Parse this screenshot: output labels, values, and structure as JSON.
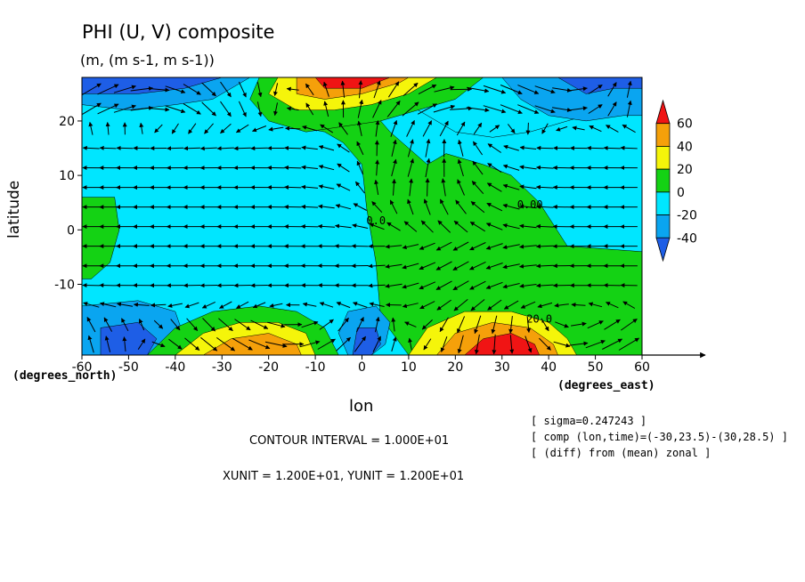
{
  "figure": {
    "title": "PHI (U, V) composite",
    "units_line": "(m, (m s-1, m s-1))",
    "xlabel": "lon",
    "ylabel": "latitude",
    "xaxis_unit_label": "(degrees_east)",
    "yaxis_unit_label": "(degrees_north)",
    "contour_interval_text": "CONTOUR INTERVAL = 1.000E+01",
    "vector_units_text": "XUNIT = 1.200E+01, YUNIT = 1.200E+01",
    "metadata_lines": [
      "[ sigma=0.247243 ]",
      "[ comp (lon,time)=(-30,23.5)-(30,28.5) ]",
      "[ (diff) from (mean) zonal ]"
    ]
  },
  "colors": {
    "level_lt_-40": "#1e5ee6",
    "level_-40_-20": "#0aa5f0",
    "level_-20_0": "#00e6ff",
    "level_0_20": "#14d214",
    "level_20_40": "#f5f50a",
    "level_40_60": "#f5a00a",
    "level_gt_60": "#f01414"
  },
  "chart_data": {
    "type": "heatmap",
    "subtype": "filled contour with overlaid wind vectors",
    "variable": "PHI (geopotential height anomaly) with (U, V) wind vectors",
    "xlim": [
      -60,
      60
    ],
    "ylim": [
      -23,
      28
    ],
    "x_ticks": [
      -60,
      -50,
      -40,
      -30,
      -20,
      -10,
      0,
      10,
      20,
      30,
      40,
      50,
      60
    ],
    "x_tick_labels": [
      "-60",
      "-50",
      "-40",
      "-30",
      "-20",
      "-10",
      "0",
      "10",
      "20",
      "30",
      "40",
      "50",
      "60"
    ],
    "y_ticks": [
      -10,
      0,
      10,
      20
    ],
    "y_tick_labels": [
      "-10",
      "0",
      "10",
      "20"
    ],
    "colorbar": {
      "levels": [
        -40,
        -20,
        0,
        20,
        40,
        60
      ],
      "tick_labels": [
        "60",
        "40",
        "20",
        "0",
        "-20",
        "-40"
      ],
      "colors": [
        "#1e5ee6",
        "#0aa5f0",
        "#00e6ff",
        "#14d214",
        "#f5f50a",
        "#f5a00a",
        "#f01414"
      ]
    },
    "contour_labels": [
      {
        "text": "0.00",
        "lon": 36,
        "lat": 4
      },
      {
        "text": "20.0",
        "lon": 38,
        "lat": -17
      },
      {
        "text": "0.0",
        "lon": 3,
        "lat": 1
      }
    ],
    "regions": [
      {
        "name": "background",
        "level": "-20_0"
      },
      {
        "name": "eastern green zone",
        "level": "0_20",
        "poly": [
          [
            -14,
            28
          ],
          [
            -2,
            28
          ],
          [
            2,
            22
          ],
          [
            6,
            18
          ],
          [
            10,
            15
          ],
          [
            14,
            12
          ],
          [
            18,
            14
          ],
          [
            26,
            12
          ],
          [
            32,
            10
          ],
          [
            38,
            5
          ],
          [
            44,
            -3
          ],
          [
            60,
            -4
          ],
          [
            60,
            -23
          ],
          [
            10,
            -23
          ],
          [
            4,
            -16
          ],
          [
            3,
            -6
          ],
          [
            1,
            4
          ],
          [
            0,
            12
          ],
          [
            -4,
            16
          ],
          [
            -8,
            18
          ],
          [
            -14,
            19
          ],
          [
            -18,
            22
          ],
          [
            -20,
            26
          ],
          [
            -18,
            28
          ]
        ]
      },
      {
        "name": "NE of center cyan",
        "level": "-20_0",
        "poly": [
          [
            6,
            28
          ],
          [
            12,
            22
          ],
          [
            20,
            18
          ],
          [
            28,
            17
          ],
          [
            36,
            18
          ],
          [
            44,
            20
          ],
          [
            52,
            22
          ],
          [
            60,
            22
          ],
          [
            60,
            28
          ]
        ]
      },
      {
        "name": "NE blue patch",
        "level": "lt_-40",
        "poly": [
          [
            40,
            28
          ],
          [
            44,
            24
          ],
          [
            50,
            22
          ],
          [
            56,
            23
          ],
          [
            60,
            24
          ],
          [
            60,
            28
          ]
        ]
      },
      {
        "name": "NE mid-blue",
        "level": "-40_-20",
        "poly": [
          [
            30,
            28
          ],
          [
            34,
            24
          ],
          [
            40,
            21
          ],
          [
            48,
            20
          ],
          [
            56,
            21
          ],
          [
            60,
            21
          ],
          [
            60,
            26
          ],
          [
            54,
            26
          ],
          [
            48,
            25
          ],
          [
            42,
            28
          ]
        ]
      },
      {
        "name": "N jet green",
        "level": "0_20",
        "poly": [
          [
            -22,
            28
          ],
          [
            -24,
            24
          ],
          [
            -20,
            20
          ],
          [
            -12,
            18
          ],
          [
            -4,
            19
          ],
          [
            4,
            20
          ],
          [
            12,
            22
          ],
          [
            20,
            24
          ],
          [
            26,
            28
          ]
        ]
      },
      {
        "name": "N jet yellow",
        "level": "20_40",
        "poly": [
          [
            -18,
            28
          ],
          [
            -20,
            25
          ],
          [
            -14,
            22
          ],
          [
            -6,
            22
          ],
          [
            2,
            23
          ],
          [
            10,
            25
          ],
          [
            16,
            28
          ]
        ]
      },
      {
        "name": "N jet orange",
        "level": "40_60",
        "poly": [
          [
            -14,
            28
          ],
          [
            -14,
            25
          ],
          [
            -8,
            24
          ],
          [
            0,
            25
          ],
          [
            8,
            27
          ],
          [
            10,
            28
          ]
        ]
      },
      {
        "name": "N jet red",
        "level": "gt_60",
        "poly": [
          [
            -10,
            28
          ],
          [
            -8,
            26
          ],
          [
            0,
            26
          ],
          [
            6,
            28
          ]
        ]
      },
      {
        "name": "NW blue",
        "level": "-40_-20",
        "poly": [
          [
            -60,
            28
          ],
          [
            -60,
            23
          ],
          [
            -50,
            22
          ],
          [
            -40,
            23
          ],
          [
            -32,
            24
          ],
          [
            -24,
            28
          ]
        ]
      },
      {
        "name": "NW dark blue",
        "level": "lt_-40",
        "poly": [
          [
            -60,
            28
          ],
          [
            -60,
            25
          ],
          [
            -48,
            25
          ],
          [
            -38,
            26
          ],
          [
            -30,
            28
          ]
        ]
      },
      {
        "name": "W green",
        "level": "0_20",
        "poly": [
          [
            -60,
            6
          ],
          [
            -53,
            6
          ],
          [
            -52,
            0
          ],
          [
            -54,
            -6
          ],
          [
            -58,
            -9
          ],
          [
            -60,
            -9
          ]
        ]
      },
      {
        "name": "SW blue",
        "level": "-40_-20",
        "poly": [
          [
            -60,
            -14
          ],
          [
            -48,
            -13
          ],
          [
            -40,
            -15
          ],
          [
            -38,
            -20
          ],
          [
            -42,
            -23
          ],
          [
            -60,
            -23
          ]
        ]
      },
      {
        "name": "SW dark blue",
        "level": "lt_-40",
        "poly": [
          [
            -56,
            -18
          ],
          [
            -48,
            -17
          ],
          [
            -44,
            -20
          ],
          [
            -46,
            -23
          ],
          [
            -56,
            -23
          ]
        ]
      },
      {
        "name": "S center blue",
        "level": "-40_-20",
        "poly": [
          [
            -3,
            -15
          ],
          [
            3,
            -14
          ],
          [
            6,
            -17
          ],
          [
            5,
            -21
          ],
          [
            2,
            -23
          ],
          [
            -3,
            -23
          ],
          [
            -5,
            -19
          ]
        ]
      },
      {
        "name": "S center dark blue",
        "level": "lt_-40",
        "poly": [
          [
            -1,
            -18
          ],
          [
            3,
            -18
          ],
          [
            4,
            -21
          ],
          [
            2,
            -23
          ],
          [
            -2,
            -23
          ]
        ]
      },
      {
        "name": "SW jet green",
        "level": "0_20",
        "poly": [
          [
            -46,
            -23
          ],
          [
            -40,
            -18
          ],
          [
            -32,
            -15
          ],
          [
            -22,
            -14
          ],
          [
            -14,
            -15
          ],
          [
            -8,
            -18
          ],
          [
            -5,
            -23
          ]
        ]
      },
      {
        "name": "SW jet yellow",
        "level": "20_40",
        "poly": [
          [
            -40,
            -23
          ],
          [
            -34,
            -19
          ],
          [
            -26,
            -17
          ],
          [
            -18,
            -17
          ],
          [
            -12,
            -19
          ],
          [
            -10,
            -23
          ]
        ]
      },
      {
        "name": "SW jet orange",
        "level": "40_60",
        "poly": [
          [
            -34,
            -23
          ],
          [
            -28,
            -20
          ],
          [
            -20,
            -19
          ],
          [
            -14,
            -21
          ],
          [
            -13,
            -23
          ]
        ]
      },
      {
        "name": "SE jet yellow",
        "level": "20_40",
        "poly": [
          [
            10,
            -23
          ],
          [
            14,
            -18
          ],
          [
            22,
            -15
          ],
          [
            32,
            -15
          ],
          [
            40,
            -17
          ],
          [
            44,
            -20
          ],
          [
            46,
            -23
          ]
        ]
      },
      {
        "name": "SE jet orange",
        "level": "40_60",
        "poly": [
          [
            16,
            -23
          ],
          [
            20,
            -19
          ],
          [
            28,
            -17
          ],
          [
            36,
            -18
          ],
          [
            41,
            -21
          ],
          [
            42,
            -23
          ]
        ]
      },
      {
        "name": "SE jet red",
        "level": "gt_60",
        "poly": [
          [
            22,
            -23
          ],
          [
            26,
            -20
          ],
          [
            32,
            -19
          ],
          [
            37,
            -21
          ],
          [
            38,
            -23
          ]
        ]
      }
    ],
    "vector_field": {
      "description": "Wind vectors on a ~4 degree grid; westward trades in the tropics, strong convergent/divergent flow around 10-30E, large arrows along 25N and 20S jets",
      "reference_unit": {
        "x": 12,
        "y": 12
      }
    }
  }
}
